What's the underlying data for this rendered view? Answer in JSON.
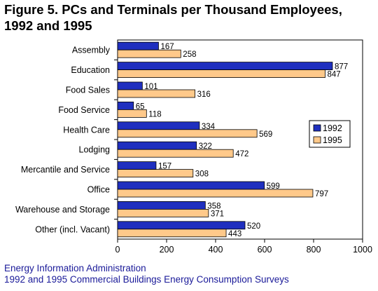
{
  "title_lines": [
    "Figure 5.  PCs and Terminals per Thousand Employees,",
    "1992 and 1995"
  ],
  "source_lines": [
    "Energy Information Administration",
    "1992 and 1995 Commercial Buildings Energy Consumption Surveys"
  ],
  "chart_data": {
    "type": "bar",
    "orientation": "horizontal",
    "categories": [
      "Assembly",
      "Education",
      "Food Sales",
      "Food Service",
      "Health Care",
      "Lodging",
      "Mercantile and Service",
      "Office",
      "Warehouse and Storage",
      "Other (incl. Vacant)"
    ],
    "series": [
      {
        "name": "1992",
        "color": "#1f2fbf",
        "values": [
          167,
          877,
          101,
          65,
          334,
          322,
          157,
          599,
          358,
          520
        ]
      },
      {
        "name": "1995",
        "color": "#ffc98a",
        "values": [
          258,
          847,
          316,
          118,
          569,
          472,
          308,
          797,
          371,
          443
        ]
      }
    ],
    "xlim": [
      0,
      1000
    ],
    "xticks": [
      0,
      200,
      400,
      600,
      800,
      1000
    ],
    "grid": false,
    "data_labels": true,
    "legend_position": "right"
  }
}
